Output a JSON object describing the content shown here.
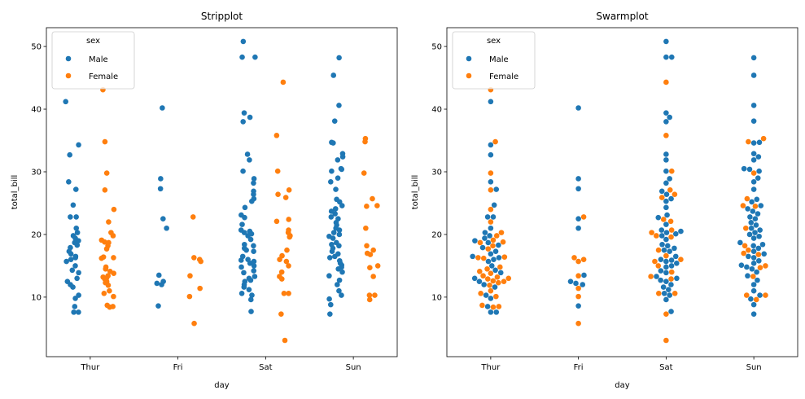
{
  "colors": {
    "male": "#1f77b4",
    "female": "#ff7f0e"
  },
  "chart_data": [
    {
      "type": "scatter",
      "variant": "stripplot",
      "title": "Stripplot",
      "xlabel": "day",
      "ylabel": "total_bill",
      "categories": [
        "Thur",
        "Fri",
        "Sat",
        "Sun"
      ],
      "ylim": [
        0.5,
        53.0
      ],
      "yticks": [
        "10",
        "20",
        "30",
        "40",
        "50"
      ],
      "legend": {
        "title": "sex",
        "placement": "top-left",
        "entries": [
          "Male",
          "Female"
        ]
      },
      "series": [
        {
          "name": "Male",
          "values": {
            "Thur": [
              41.2,
              34.3,
              32.7,
              28.4,
              27.2,
              24.7,
              22.8,
              22.8,
              21.0,
              19.8,
              19.4,
              18.7,
              18.3,
              17.3,
              16.9,
              16.5,
              16.3,
              15.7,
              15.0,
              14.3,
              13.9,
              13.0,
              12.5,
              11.6,
              10.3,
              9.8,
              8.5,
              7.6,
              7.6,
              19.0,
              16.0,
              12.0,
              20.3,
              17.9
            ],
            "Fri": [
              40.2,
              28.9,
              27.3,
              22.5,
              21.0,
              13.5,
              12.5,
              12.2,
              12.0,
              8.6
            ],
            "Sat": [
              50.8,
              48.3,
              48.3,
              39.4,
              38.7,
              38.0,
              32.8,
              31.9,
              30.1,
              28.9,
              28.2,
              26.9,
              26.4,
              25.7,
              25.3,
              24.3,
              23.1,
              22.7,
              21.6,
              20.7,
              20.5,
              20.3,
              20.1,
              19.8,
              19.2,
              18.4,
              18.2,
              17.8,
              17.5,
              17.3,
              16.5,
              16.0,
              15.9,
              15.7,
              15.4,
              15.0,
              14.8,
              14.2,
              13.9,
              13.3,
              13.0,
              12.7,
              12.5,
              12.0,
              11.6,
              11.2,
              10.6,
              10.3,
              9.6,
              7.7
            ],
            "Sun": [
              48.2,
              45.4,
              40.6,
              38.1,
              34.7,
              34.6,
              32.9,
              32.4,
              31.9,
              30.5,
              30.4,
              30.1,
              29.0,
              28.4,
              27.2,
              25.6,
              25.2,
              24.6,
              24.1,
              23.7,
              23.3,
              22.8,
              22.5,
              21.9,
              21.5,
              21.0,
              20.7,
              20.3,
              20.0,
              19.7,
              19.4,
              18.7,
              18.4,
              18.2,
              17.8,
              17.3,
              16.9,
              16.5,
              16.3,
              15.8,
              15.4,
              15.1,
              14.8,
              14.5,
              14.0,
              13.4,
              12.7,
              12.0,
              11.0,
              10.3,
              9.7,
              8.8,
              7.3
            ]
          }
        },
        {
          "name": "Female",
          "values": {
            "Thur": [
              43.1,
              34.8,
              29.8,
              27.1,
              24.0,
              22.0,
              20.3,
              19.8,
              19.1,
              18.8,
              18.7,
              18.2,
              17.7,
              16.4,
              16.3,
              16.2,
              14.8,
              14.5,
              14.1,
              13.8,
              13.4,
              13.2,
              13.0,
              12.9,
              12.6,
              12.5,
              12.3,
              11.9,
              11.0,
              10.6,
              10.1,
              8.7,
              8.5,
              8.4
            ],
            "Fri": [
              22.8,
              16.3,
              16.0,
              15.7,
              13.4,
              11.4,
              10.1,
              5.8
            ],
            "Sat": [
              44.3,
              35.8,
              30.1,
              27.1,
              26.4,
              25.9,
              22.4,
              22.1,
              20.7,
              20.3,
              19.8,
              19.6,
              17.5,
              16.6,
              16.0,
              15.7,
              15.0,
              14.0,
              13.3,
              12.9,
              10.6,
              10.6,
              7.3,
              3.1
            ],
            "Sun": [
              35.3,
              34.8,
              29.8,
              25.7,
              24.6,
              24.5,
              21.0,
              18.2,
              17.5,
              17.0,
              16.8,
              15.0,
              14.7,
              13.3,
              10.3,
              10.3,
              9.6
            ]
          }
        }
      ]
    },
    {
      "type": "scatter",
      "variant": "swarmplot",
      "title": "Swarmplot",
      "xlabel": "day",
      "ylabel": "total_bill",
      "categories": [
        "Thur",
        "Fri",
        "Sat",
        "Sun"
      ],
      "ylim": [
        0.5,
        53.0
      ],
      "yticks": [
        "10",
        "20",
        "30",
        "40",
        "50"
      ],
      "legend": {
        "title": "sex",
        "placement": "top-left",
        "entries": [
          "Male",
          "Female"
        ]
      },
      "same_data_as": 0
    }
  ]
}
